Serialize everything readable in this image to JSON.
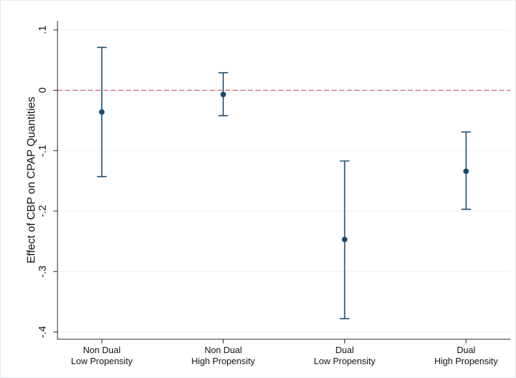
{
  "chart_data": {
    "type": "errorbar",
    "y_label": "Effect of CBP on CPAP Quantities",
    "categories": [
      [
        "Non Dual",
        "Low Propensity"
      ],
      [
        "Non Dual",
        "High Propensity"
      ],
      [
        "Dual",
        "Low Propensity"
      ],
      [
        "Dual",
        "High Propensity"
      ]
    ],
    "series": [
      {
        "color": "#1a4a6e",
        "values": [
          -0.036,
          -0.007,
          -0.247,
          -0.134
        ],
        "ci_lower": [
          -0.143,
          -0.042,
          -0.378,
          -0.197
        ],
        "ci_upper": [
          0.071,
          0.029,
          -0.117,
          -0.069
        ]
      }
    ],
    "ylim": [
      -0.412,
      0.115
    ],
    "yticks": [
      {
        "value": 0.1,
        "label": ".1"
      },
      0,
      {
        "value": -0.1,
        "label": "-.1"
      },
      {
        "value": -0.2,
        "label": "-.2"
      },
      {
        "value": -0.3,
        "label": "-.3"
      },
      {
        "value": -0.4,
        "label": "-.4"
      }
    ],
    "reference_line": {
      "value": 0,
      "color": "#c86478"
    },
    "grid": true
  }
}
